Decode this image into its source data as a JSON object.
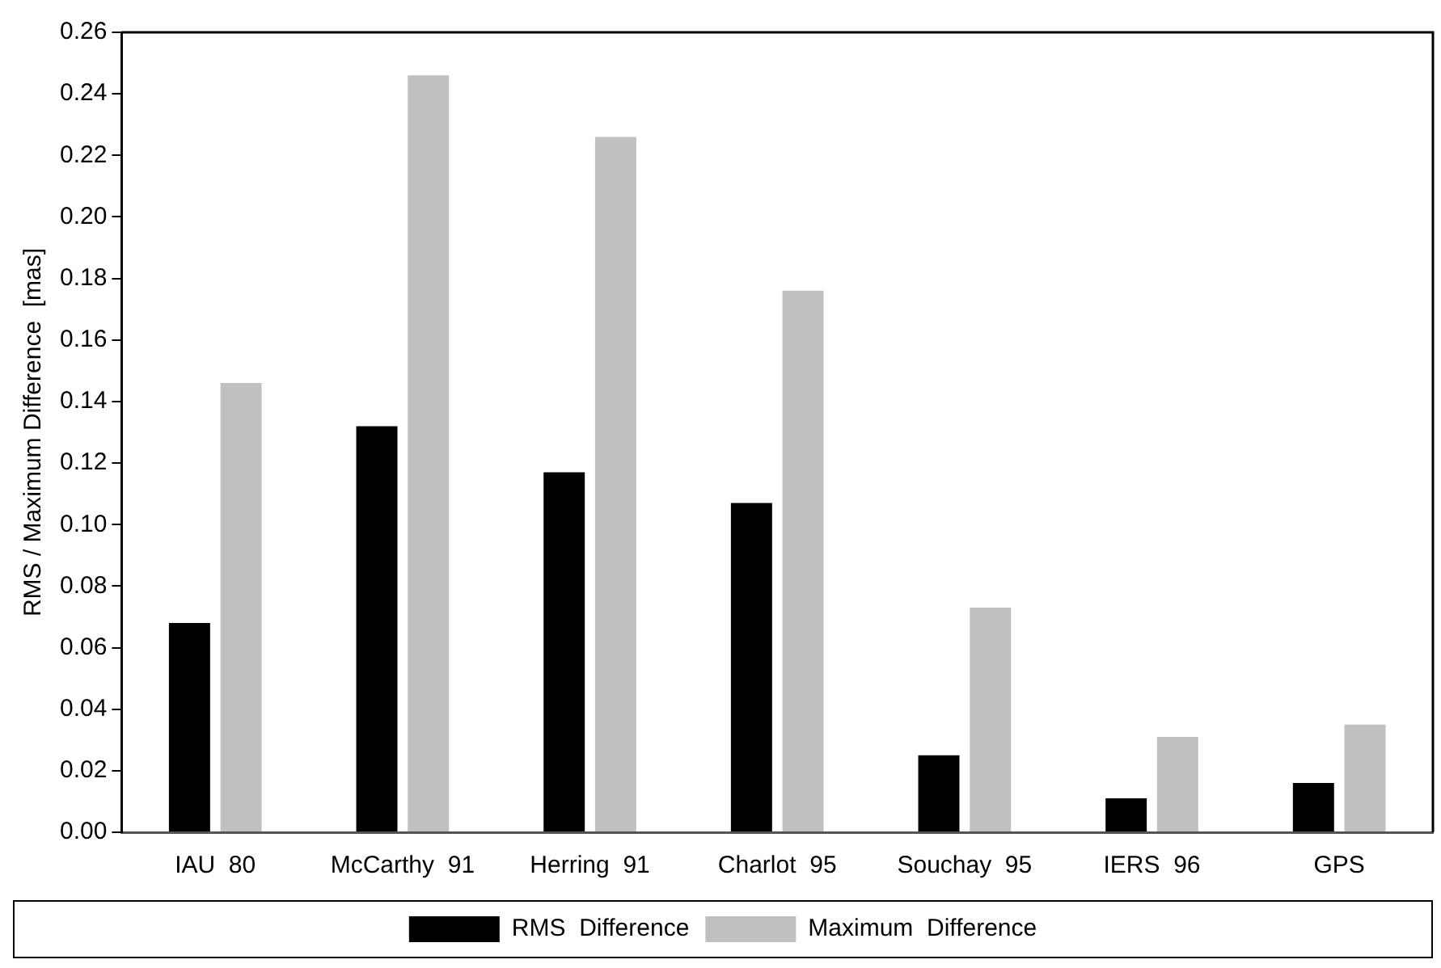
{
  "chart_data": {
    "type": "bar",
    "ylabel": "RMS / Maximum Difference  [mas]",
    "categories": [
      "IAU  80",
      "McCarthy  91",
      "Herring  91",
      "Charlot  95",
      "Souchay  95",
      "IERS  96",
      "GPS"
    ],
    "series": [
      {
        "name": "RMS  Difference",
        "color": "#000000",
        "values": [
          0.068,
          0.132,
          0.117,
          0.107,
          0.025,
          0.011,
          0.016
        ]
      },
      {
        "name": "Maximum  Difference",
        "color": "#c0c0c0",
        "values": [
          0.146,
          0.246,
          0.226,
          0.176,
          0.073,
          0.031,
          0.035
        ]
      }
    ],
    "ylim": [
      0,
      0.26
    ],
    "yticks": [
      {
        "value": 0,
        "label": "0.00"
      },
      {
        "value": 0.02,
        "label": "0.02"
      },
      {
        "value": 0.04,
        "label": "0.04"
      },
      {
        "value": 0.06,
        "label": "0.06"
      },
      {
        "value": 0.08,
        "label": "0.08"
      },
      {
        "value": 0.1,
        "label": "0.10"
      },
      {
        "value": 0.12,
        "label": "0.12"
      },
      {
        "value": 0.14,
        "label": "0.14"
      },
      {
        "value": 0.16,
        "label": "0.16"
      },
      {
        "value": 0.18,
        "label": "0.18"
      },
      {
        "value": 0.2,
        "label": "0.20"
      },
      {
        "value": 0.22,
        "label": "0.22"
      },
      {
        "value": 0.24,
        "label": "0.24"
      },
      {
        "value": 0.26,
        "label": "0.26"
      }
    ],
    "grid": false,
    "legend": "bottom"
  }
}
